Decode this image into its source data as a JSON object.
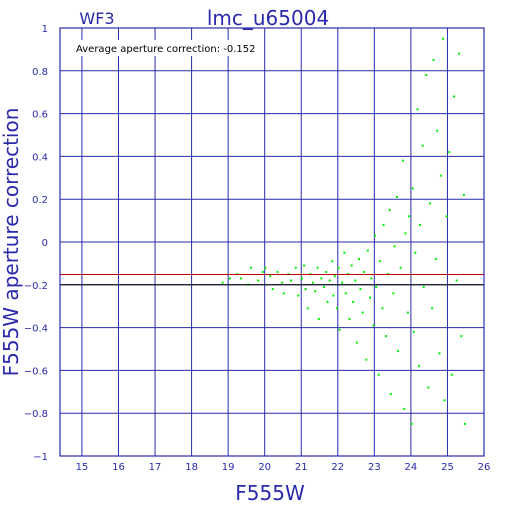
{
  "header": {
    "chip": "WF3",
    "title": "lmc_u65004",
    "annotation": "Average aperture correction: -0.152"
  },
  "chart_data": {
    "type": "scatter",
    "xlabel": "F555W",
    "ylabel": "F555W aperture correction",
    "xlim": [
      14.4,
      26
    ],
    "ylim": [
      -1,
      1
    ],
    "xticks": [
      15,
      16,
      17,
      18,
      19,
      20,
      21,
      22,
      23,
      24,
      25,
      26
    ],
    "yticks": [
      -1,
      -0.8,
      -0.6,
      -0.4,
      -0.2,
      0,
      0.2,
      0.4,
      0.6,
      0.8,
      1
    ],
    "ytick_labels": [
      "−1",
      "−0.8",
      "−0.6",
      "−0.4",
      "−0.2",
      "0",
      "0.2",
      "0.4",
      "0.6",
      "0.8",
      "1"
    ],
    "grid": true,
    "reference_lines": [
      {
        "y": -0.152,
        "color": "#c00000"
      },
      {
        "y": -0.2,
        "color": "#000000"
      }
    ],
    "point_color": "#00ee00",
    "points": [
      [
        18.85,
        -0.19
      ],
      [
        19.05,
        -0.17
      ],
      [
        19.25,
        -0.15
      ],
      [
        19.35,
        -0.17
      ],
      [
        19.55,
        -0.2
      ],
      [
        19.62,
        -0.12
      ],
      [
        19.82,
        -0.18
      ],
      [
        19.95,
        -0.14
      ],
      [
        20.02,
        -0.12
      ],
      [
        20.15,
        -0.16
      ],
      [
        20.22,
        -0.22
      ],
      [
        20.35,
        -0.14
      ],
      [
        20.48,
        -0.19
      ],
      [
        20.52,
        -0.24
      ],
      [
        20.65,
        -0.15
      ],
      [
        20.72,
        -0.18
      ],
      [
        20.85,
        -0.12
      ],
      [
        20.92,
        -0.25
      ],
      [
        21.02,
        -0.17
      ],
      [
        21.08,
        -0.11
      ],
      [
        21.12,
        -0.22
      ],
      [
        21.18,
        -0.31
      ],
      [
        21.25,
        -0.15
      ],
      [
        21.32,
        -0.19
      ],
      [
        21.38,
        -0.23
      ],
      [
        21.45,
        -0.12
      ],
      [
        21.48,
        -0.36
      ],
      [
        21.55,
        -0.17
      ],
      [
        21.62,
        -0.21
      ],
      [
        21.68,
        -0.14
      ],
      [
        21.72,
        -0.28
      ],
      [
        21.78,
        -0.18
      ],
      [
        21.85,
        -0.09
      ],
      [
        21.88,
        -0.25
      ],
      [
        21.92,
        -0.16
      ],
      [
        21.98,
        -0.31
      ],
      [
        22.02,
        -0.12
      ],
      [
        22.05,
        -0.41
      ],
      [
        22.12,
        -0.19
      ],
      [
        22.18,
        -0.05
      ],
      [
        22.22,
        -0.24
      ],
      [
        22.28,
        -0.15
      ],
      [
        22.32,
        -0.36
      ],
      [
        22.38,
        -0.11
      ],
      [
        22.42,
        -0.28
      ],
      [
        22.48,
        -0.18
      ],
      [
        22.52,
        -0.47
      ],
      [
        22.58,
        -0.08
      ],
      [
        22.62,
        -0.22
      ],
      [
        22.68,
        -0.33
      ],
      [
        22.72,
        -0.14
      ],
      [
        22.78,
        -0.55
      ],
      [
        22.82,
        -0.04
      ],
      [
        22.88,
        -0.26
      ],
      [
        22.92,
        -0.17
      ],
      [
        22.98,
        -0.39
      ],
      [
        23.02,
        0.03
      ],
      [
        23.05,
        -0.21
      ],
      [
        23.12,
        -0.62
      ],
      [
        23.15,
        -0.09
      ],
      [
        23.22,
        -0.31
      ],
      [
        23.25,
        0.08
      ],
      [
        23.32,
        -0.44
      ],
      [
        23.38,
        -0.15
      ],
      [
        23.42,
        0.15
      ],
      [
        23.45,
        -0.71
      ],
      [
        23.52,
        -0.24
      ],
      [
        23.55,
        -0.02
      ],
      [
        23.62,
        0.21
      ],
      [
        23.65,
        -0.51
      ],
      [
        23.72,
        -0.12
      ],
      [
        23.78,
        0.38
      ],
      [
        23.82,
        -0.78
      ],
      [
        23.85,
        0.04
      ],
      [
        23.92,
        -0.33
      ],
      [
        23.95,
        0.12
      ],
      [
        24.02,
        -0.85
      ],
      [
        24.05,
        0.25
      ],
      [
        24.08,
        -0.42
      ],
      [
        24.12,
        -0.05
      ],
      [
        24.18,
        0.62
      ],
      [
        24.22,
        -0.58
      ],
      [
        24.25,
        0.08
      ],
      [
        24.32,
        0.45
      ],
      [
        24.35,
        -0.21
      ],
      [
        24.42,
        0.78
      ],
      [
        24.48,
        -0.68
      ],
      [
        24.52,
        0.18
      ],
      [
        24.58,
        -0.31
      ],
      [
        24.62,
        0.85
      ],
      [
        24.68,
        -0.08
      ],
      [
        24.72,
        0.52
      ],
      [
        24.78,
        -0.52
      ],
      [
        24.82,
        0.31
      ],
      [
        24.88,
        0.95
      ],
      [
        24.92,
        -0.74
      ],
      [
        24.98,
        0.12
      ],
      [
        25.05,
        0.42
      ],
      [
        25.12,
        -0.62
      ],
      [
        25.18,
        0.68
      ],
      [
        25.25,
        -0.18
      ],
      [
        25.32,
        0.88
      ],
      [
        25.38,
        -0.44
      ],
      [
        25.45,
        0.22
      ],
      [
        25.48,
        -0.85
      ]
    ]
  }
}
